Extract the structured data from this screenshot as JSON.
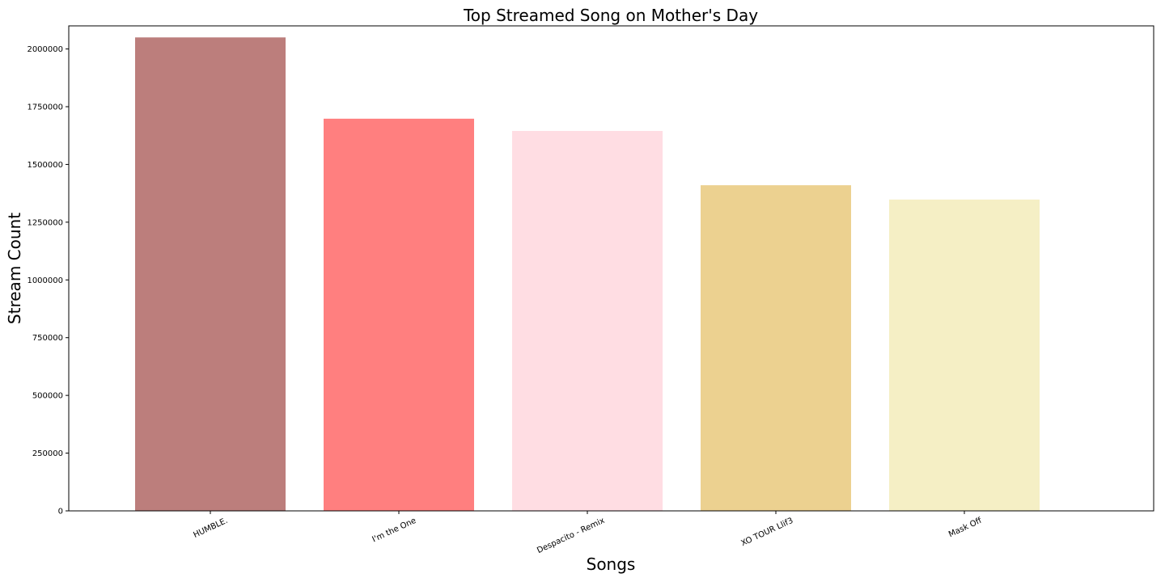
{
  "chart_data": {
    "type": "bar",
    "title": "Top Streamed Song on Mother's Day",
    "xlabel": "Songs",
    "ylabel": "Stream Count",
    "categories": [
      "HUMBLE.",
      "I'm the One",
      "Despacito - Remix",
      "XO TOUR Llif3",
      "Mask Off"
    ],
    "values": [
      2050000,
      1698000,
      1645000,
      1410000,
      1348000
    ],
    "colors": [
      "#bc7e7c",
      "#ff7f7f",
      "#ffdde3",
      "#ecd190",
      "#f5efc5"
    ],
    "yticks": [
      0,
      250000,
      500000,
      750000,
      1000000,
      1250000,
      1500000,
      1750000,
      2000000
    ],
    "ylim": [
      0,
      2100000
    ],
    "grid": false,
    "legend": false
  }
}
